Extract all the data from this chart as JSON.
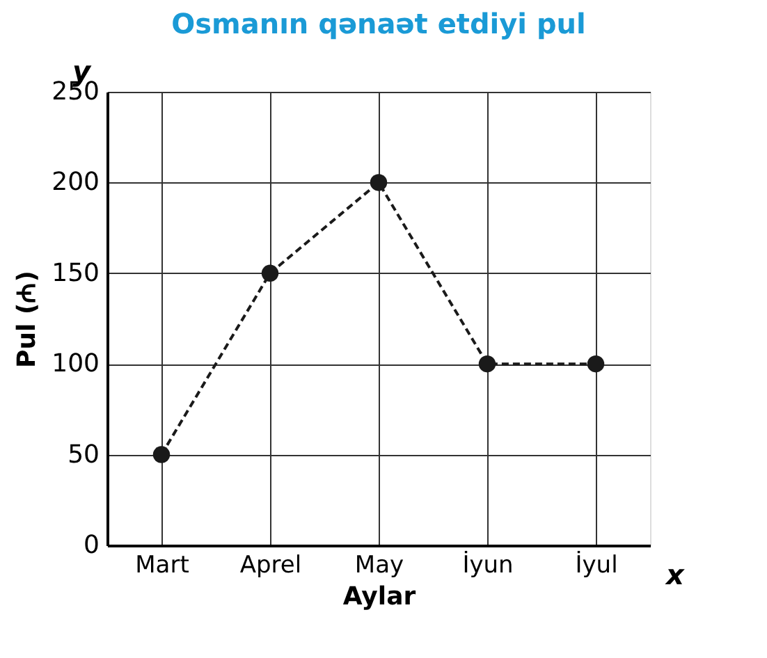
{
  "chart_data": {
    "type": "line",
    "title": "Osmanın qənaət etdiyi pul",
    "xlabel": "Aylar",
    "ylabel": "Pul (₼)",
    "categories": [
      "Mart",
      "Aprel",
      "May",
      "İyun",
      "İyul"
    ],
    "series": [
      {
        "color": "#1a1a1a",
        "values": [
          50,
          150,
          200,
          100,
          100
        ]
      }
    ],
    "ylim": [
      0,
      250
    ],
    "yticks": [
      0,
      50,
      100,
      150,
      200,
      250
    ],
    "annotations": [
      "y",
      "x"
    ],
    "grid": true,
    "marker": "circle",
    "line_style": "dashed"
  }
}
